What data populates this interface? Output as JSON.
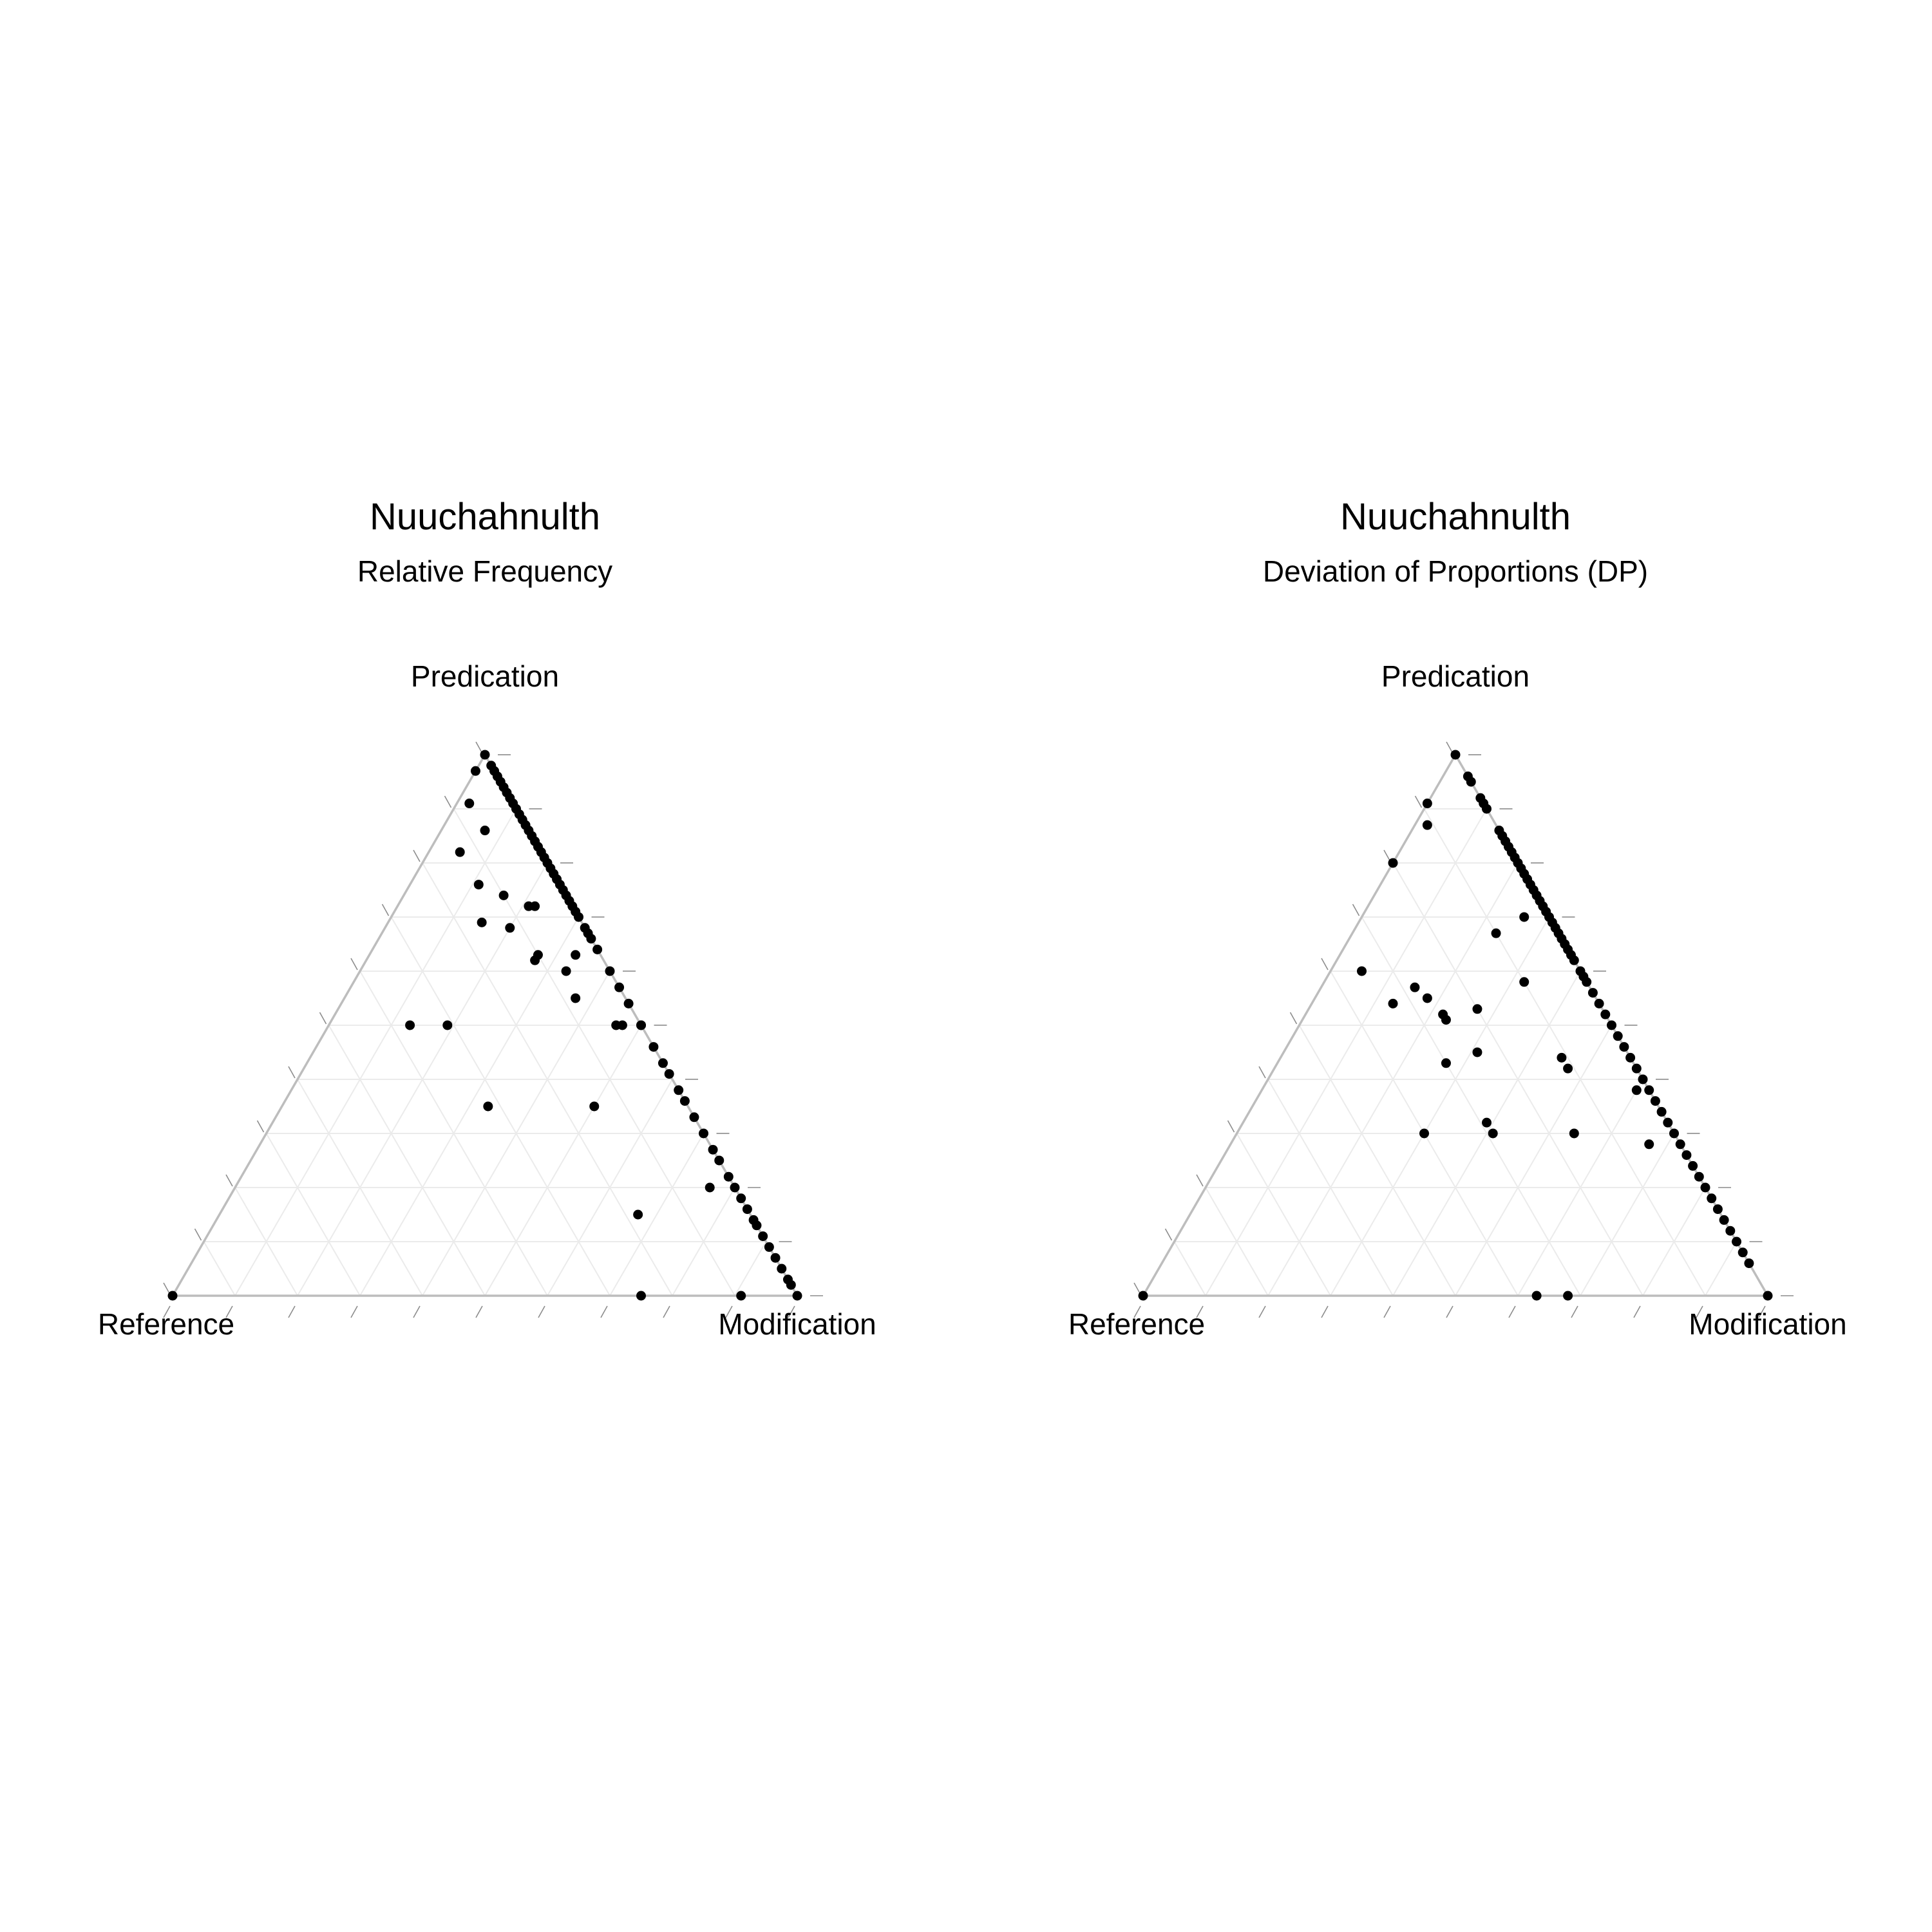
{
  "chart_data": [
    {
      "type": "scatter",
      "subtype": "ternary",
      "title": "Nuuchahnulth",
      "subtitle": "Relative Frequency",
      "axes": {
        "top": "Predication",
        "left": "Reference",
        "right": "Modification"
      },
      "grid": true,
      "grid_step": 0.1,
      "point_color": "#000000",
      "points": [
        [
          1.0,
          0.0,
          0.0
        ],
        [
          0.98,
          0.0,
          0.02
        ],
        [
          0.97,
          0.0,
          0.03
        ],
        [
          0.96,
          0.0,
          0.04
        ],
        [
          0.95,
          0.0,
          0.05
        ],
        [
          0.94,
          0.0,
          0.06
        ],
        [
          0.93,
          0.0,
          0.07
        ],
        [
          0.92,
          0.0,
          0.08
        ],
        [
          0.91,
          0.0,
          0.09
        ],
        [
          0.9,
          0.0,
          0.1
        ],
        [
          0.89,
          0.0,
          0.11
        ],
        [
          0.88,
          0.0,
          0.12
        ],
        [
          0.87,
          0.0,
          0.13
        ],
        [
          0.86,
          0.0,
          0.14
        ],
        [
          0.85,
          0.0,
          0.15
        ],
        [
          0.84,
          0.0,
          0.16
        ],
        [
          0.83,
          0.0,
          0.17
        ],
        [
          0.82,
          0.0,
          0.18
        ],
        [
          0.81,
          0.0,
          0.19
        ],
        [
          0.8,
          0.0,
          0.2
        ],
        [
          0.79,
          0.0,
          0.21
        ],
        [
          0.78,
          0.0,
          0.22
        ],
        [
          0.77,
          0.0,
          0.23
        ],
        [
          0.76,
          0.0,
          0.24
        ],
        [
          0.75,
          0.0,
          0.25
        ],
        [
          0.74,
          0.0,
          0.26
        ],
        [
          0.73,
          0.0,
          0.27
        ],
        [
          0.72,
          0.0,
          0.28
        ],
        [
          0.71,
          0.0,
          0.29
        ],
        [
          0.7,
          0.0,
          0.3
        ],
        [
          0.68,
          0.0,
          0.32
        ],
        [
          0.67,
          0.0,
          0.33
        ],
        [
          0.66,
          0.0,
          0.34
        ],
        [
          0.64,
          0.0,
          0.36
        ],
        [
          0.6,
          0.0,
          0.4
        ],
        [
          0.57,
          0.0,
          0.43
        ],
        [
          0.54,
          0.0,
          0.46
        ],
        [
          0.5,
          0.0,
          0.5
        ],
        [
          0.46,
          0.0,
          0.54
        ],
        [
          0.43,
          0.0,
          0.57
        ],
        [
          0.41,
          0.0,
          0.59
        ],
        [
          0.38,
          0.0,
          0.62
        ],
        [
          0.36,
          0.0,
          0.64
        ],
        [
          0.33,
          0.0,
          0.67
        ],
        [
          0.3,
          0.0,
          0.7
        ],
        [
          0.27,
          0.0,
          0.73
        ],
        [
          0.25,
          0.0,
          0.75
        ],
        [
          0.22,
          0.0,
          0.78
        ],
        [
          0.2,
          0.0,
          0.8
        ],
        [
          0.18,
          0.0,
          0.82
        ],
        [
          0.16,
          0.0,
          0.84
        ],
        [
          0.14,
          0.0,
          0.86
        ],
        [
          0.13,
          0.0,
          0.87
        ],
        [
          0.11,
          0.0,
          0.89
        ],
        [
          0.09,
          0.0,
          0.91
        ],
        [
          0.07,
          0.0,
          0.93
        ],
        [
          0.05,
          0.0,
          0.95
        ],
        [
          0.03,
          0.0,
          0.97
        ],
        [
          0.02,
          0.0,
          0.98
        ],
        [
          0.0,
          0.0,
          1.0
        ],
        [
          0.97,
          0.03,
          0.0
        ],
        [
          0.91,
          0.07,
          0.02
        ],
        [
          0.86,
          0.07,
          0.07
        ],
        [
          0.82,
          0.13,
          0.05
        ],
        [
          0.76,
          0.13,
          0.11
        ],
        [
          0.72,
          0.07,
          0.21
        ],
        [
          0.69,
          0.16,
          0.15
        ],
        [
          0.68,
          0.12,
          0.2
        ],
        [
          0.63,
          0.1,
          0.27
        ],
        [
          0.63,
          0.04,
          0.33
        ],
        [
          0.62,
          0.11,
          0.27
        ],
        [
          0.6,
          0.07,
          0.33
        ],
        [
          0.55,
          0.08,
          0.37
        ],
        [
          0.5,
          0.0,
          0.5
        ],
        [
          0.5,
          0.37,
          0.13
        ],
        [
          0.5,
          0.04,
          0.46
        ],
        [
          0.5,
          0.03,
          0.47
        ],
        [
          0.5,
          0.31,
          0.19
        ],
        [
          0.35,
          0.32,
          0.33
        ],
        [
          0.35,
          0.15,
          0.5
        ],
        [
          0.2,
          0.04,
          0.76
        ],
        [
          0.15,
          0.18,
          0.67
        ],
        [
          0.0,
          0.09,
          0.91
        ],
        [
          0.0,
          0.25,
          0.75
        ],
        [
          0.0,
          1.0,
          0.0
        ],
        [
          0.74,
          0.1,
          0.16
        ],
        [
          0.72,
          0.06,
          0.22
        ]
      ]
    },
    {
      "type": "scatter",
      "subtype": "ternary",
      "title": "Nuuchahnulth",
      "subtitle": "Deviation of Proportions (DP)",
      "axes": {
        "top": "Predication",
        "left": "Reference",
        "right": "Modification"
      },
      "grid": true,
      "grid_step": 0.1,
      "point_color": "#000000",
      "points": [
        [
          1.0,
          0.0,
          0.0
        ],
        [
          0.96,
          0.0,
          0.04
        ],
        [
          0.95,
          0.0,
          0.05
        ],
        [
          0.92,
          0.0,
          0.08
        ],
        [
          0.91,
          0.0,
          0.09
        ],
        [
          0.9,
          0.0,
          0.1
        ],
        [
          0.86,
          0.0,
          0.14
        ],
        [
          0.85,
          0.0,
          0.15
        ],
        [
          0.84,
          0.0,
          0.16
        ],
        [
          0.83,
          0.0,
          0.17
        ],
        [
          0.82,
          0.0,
          0.18
        ],
        [
          0.81,
          0.0,
          0.19
        ],
        [
          0.8,
          0.0,
          0.2
        ],
        [
          0.79,
          0.0,
          0.21
        ],
        [
          0.78,
          0.0,
          0.22
        ],
        [
          0.77,
          0.0,
          0.23
        ],
        [
          0.76,
          0.0,
          0.24
        ],
        [
          0.75,
          0.0,
          0.25
        ],
        [
          0.74,
          0.0,
          0.26
        ],
        [
          0.73,
          0.0,
          0.27
        ],
        [
          0.72,
          0.0,
          0.28
        ],
        [
          0.71,
          0.0,
          0.29
        ],
        [
          0.7,
          0.0,
          0.3
        ],
        [
          0.69,
          0.0,
          0.31
        ],
        [
          0.68,
          0.0,
          0.32
        ],
        [
          0.67,
          0.0,
          0.33
        ],
        [
          0.66,
          0.0,
          0.34
        ],
        [
          0.65,
          0.0,
          0.35
        ],
        [
          0.64,
          0.0,
          0.36
        ],
        [
          0.63,
          0.0,
          0.37
        ],
        [
          0.62,
          0.0,
          0.38
        ],
        [
          0.6,
          0.0,
          0.4
        ],
        [
          0.59,
          0.0,
          0.41
        ],
        [
          0.58,
          0.0,
          0.42
        ],
        [
          0.56,
          0.0,
          0.44
        ],
        [
          0.54,
          0.0,
          0.46
        ],
        [
          0.52,
          0.0,
          0.48
        ],
        [
          0.5,
          0.0,
          0.5
        ],
        [
          0.48,
          0.0,
          0.52
        ],
        [
          0.46,
          0.0,
          0.54
        ],
        [
          0.44,
          0.0,
          0.56
        ],
        [
          0.42,
          0.0,
          0.58
        ],
        [
          0.4,
          0.0,
          0.6
        ],
        [
          0.38,
          0.0,
          0.62
        ],
        [
          0.36,
          0.0,
          0.64
        ],
        [
          0.34,
          0.0,
          0.66
        ],
        [
          0.32,
          0.0,
          0.68
        ],
        [
          0.3,
          0.0,
          0.7
        ],
        [
          0.28,
          0.0,
          0.72
        ],
        [
          0.26,
          0.0,
          0.74
        ],
        [
          0.24,
          0.0,
          0.76
        ],
        [
          0.22,
          0.0,
          0.78
        ],
        [
          0.2,
          0.0,
          0.8
        ],
        [
          0.18,
          0.0,
          0.82
        ],
        [
          0.16,
          0.0,
          0.84
        ],
        [
          0.14,
          0.0,
          0.86
        ],
        [
          0.12,
          0.0,
          0.88
        ],
        [
          0.1,
          0.0,
          0.9
        ],
        [
          0.08,
          0.0,
          0.92
        ],
        [
          0.06,
          0.0,
          0.94
        ],
        [
          0.0,
          0.0,
          1.0
        ],
        [
          0.91,
          0.09,
          0.0
        ],
        [
          0.87,
          0.11,
          0.02
        ],
        [
          0.8,
          0.2,
          0.0
        ],
        [
          0.7,
          0.04,
          0.26
        ],
        [
          0.67,
          0.1,
          0.23
        ],
        [
          0.6,
          0.35,
          0.05
        ],
        [
          0.58,
          0.1,
          0.32
        ],
        [
          0.57,
          0.28,
          0.15
        ],
        [
          0.55,
          0.27,
          0.18
        ],
        [
          0.54,
          0.33,
          0.13
        ],
        [
          0.53,
          0.2,
          0.27
        ],
        [
          0.52,
          0.26,
          0.22
        ],
        [
          0.51,
          0.26,
          0.23
        ],
        [
          0.45,
          0.24,
          0.31
        ],
        [
          0.44,
          0.11,
          0.45
        ],
        [
          0.43,
          0.3,
          0.27
        ],
        [
          0.42,
          0.11,
          0.47
        ],
        [
          0.38,
          0.02,
          0.6
        ],
        [
          0.32,
          0.29,
          0.39
        ],
        [
          0.3,
          0.29,
          0.41
        ],
        [
          0.3,
          0.16,
          0.54
        ],
        [
          0.28,
          0.05,
          0.67
        ],
        [
          0.0,
          0.32,
          0.68
        ],
        [
          0.0,
          0.37,
          0.63
        ],
        [
          0.0,
          1.0,
          0.0
        ],
        [
          0.3,
          0.4,
          0.3
        ]
      ]
    }
  ]
}
